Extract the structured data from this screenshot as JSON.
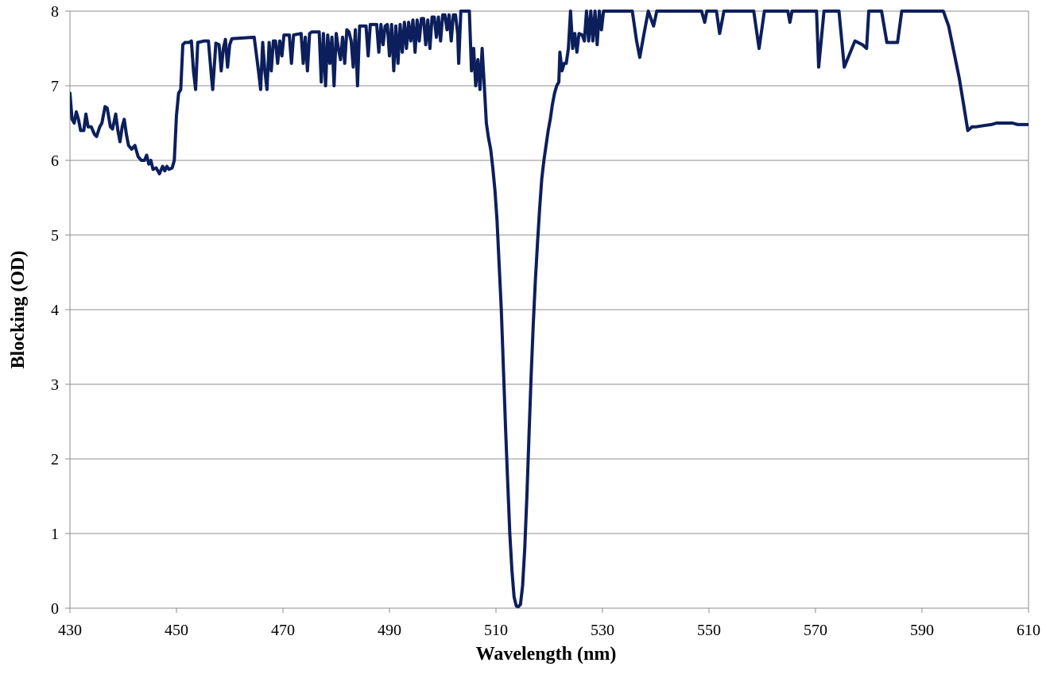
{
  "chart_data": {
    "type": "line",
    "title": "",
    "xlabel": "Wavelength (nm)",
    "ylabel": "Blocking (OD)",
    "xlim": [
      430,
      610
    ],
    "ylim": [
      0,
      8
    ],
    "x_ticks": [
      "430",
      "450",
      "470",
      "490",
      "510",
      "530",
      "550",
      "570",
      "590",
      "610"
    ],
    "y_ticks": [
      "0",
      "1",
      "2",
      "3",
      "4",
      "5",
      "6",
      "7",
      "8"
    ],
    "grid": "horizontal",
    "legend": "none",
    "line_color": "#0c1f5c",
    "series": [
      {
        "points": [
          [
            430,
            6.9
          ],
          [
            430.4,
            6.55
          ],
          [
            430.8,
            6.5
          ],
          [
            431.2,
            6.65
          ],
          [
            431.6,
            6.55
          ],
          [
            432,
            6.4
          ],
          [
            432.6,
            6.4
          ],
          [
            433,
            6.62
          ],
          [
            433.4,
            6.45
          ],
          [
            434,
            6.45
          ],
          [
            434.6,
            6.35
          ],
          [
            435,
            6.32
          ],
          [
            435.6,
            6.45
          ],
          [
            436,
            6.5
          ],
          [
            436.6,
            6.72
          ],
          [
            437,
            6.7
          ],
          [
            437.6,
            6.45
          ],
          [
            438,
            6.42
          ],
          [
            438.6,
            6.62
          ],
          [
            439,
            6.4
          ],
          [
            439.4,
            6.25
          ],
          [
            439.8,
            6.45
          ],
          [
            440.2,
            6.55
          ],
          [
            440.6,
            6.35
          ],
          [
            441,
            6.2
          ],
          [
            441.6,
            6.15
          ],
          [
            442.2,
            6.2
          ],
          [
            442.8,
            6.05
          ],
          [
            443.4,
            6.0
          ],
          [
            444,
            6.0
          ],
          [
            444.4,
            6.07
          ],
          [
            444.8,
            5.95
          ],
          [
            445.2,
            6.0
          ],
          [
            445.6,
            5.88
          ],
          [
            446.2,
            5.9
          ],
          [
            446.8,
            5.82
          ],
          [
            447.4,
            5.92
          ],
          [
            447.8,
            5.86
          ],
          [
            448.2,
            5.92
          ],
          [
            448.6,
            5.88
          ],
          [
            449.2,
            5.9
          ],
          [
            449.6,
            6.0
          ],
          [
            450,
            6.6
          ],
          [
            450.4,
            6.9
          ],
          [
            450.8,
            6.95
          ],
          [
            451.2,
            7.55
          ],
          [
            451.6,
            7.58
          ],
          [
            452.4,
            7.58
          ],
          [
            452.8,
            7.6
          ],
          [
            453.2,
            7.2
          ],
          [
            453.6,
            6.95
          ],
          [
            454,
            7.58
          ],
          [
            455.2,
            7.6
          ],
          [
            456,
            7.6
          ],
          [
            456.6,
            7.1
          ],
          [
            456.8,
            6.95
          ],
          [
            457.4,
            7.57
          ],
          [
            458,
            7.55
          ],
          [
            458.4,
            7.2
          ],
          [
            458.8,
            7.5
          ],
          [
            459.2,
            7.62
          ],
          [
            459.6,
            7.25
          ],
          [
            460,
            7.55
          ],
          [
            460.4,
            7.63
          ],
          [
            464.6,
            7.65
          ],
          [
            465.4,
            7.2
          ],
          [
            465.8,
            6.95
          ],
          [
            466.2,
            7.58
          ],
          [
            466.6,
            7.2
          ],
          [
            467,
            6.95
          ],
          [
            467.4,
            7.58
          ],
          [
            467.8,
            7.2
          ],
          [
            468.2,
            7.6
          ],
          [
            468.6,
            7.6
          ],
          [
            469,
            7.3
          ],
          [
            469.4,
            7.6
          ],
          [
            469.8,
            7.4
          ],
          [
            470.2,
            7.68
          ],
          [
            471.2,
            7.68
          ],
          [
            471.6,
            7.3
          ],
          [
            472,
            7.68
          ],
          [
            473.4,
            7.7
          ],
          [
            473.8,
            7.3
          ],
          [
            474.2,
            7.65
          ],
          [
            474.6,
            7.2
          ],
          [
            475,
            7.7
          ],
          [
            475.4,
            7.72
          ],
          [
            476.8,
            7.72
          ],
          [
            477.2,
            7.05
          ],
          [
            477.6,
            7.7
          ],
          [
            478,
            7.0
          ],
          [
            478.4,
            7.68
          ],
          [
            478.8,
            7.3
          ],
          [
            479.2,
            7.65
          ],
          [
            479.6,
            7.0
          ],
          [
            480,
            7.7
          ],
          [
            480.4,
            7.5
          ],
          [
            480.8,
            7.35
          ],
          [
            481.2,
            7.65
          ],
          [
            481.6,
            7.3
          ],
          [
            482,
            7.75
          ],
          [
            482.4,
            7.72
          ],
          [
            482.8,
            7.6
          ],
          [
            483.2,
            7.25
          ],
          [
            483.6,
            7.75
          ],
          [
            484,
            7.0
          ],
          [
            484.4,
            7.8
          ],
          [
            485.6,
            7.8
          ],
          [
            486,
            7.4
          ],
          [
            486.4,
            7.82
          ],
          [
            487.6,
            7.82
          ],
          [
            488,
            7.45
          ],
          [
            488.4,
            7.82
          ],
          [
            488.8,
            7.55
          ],
          [
            489.2,
            7.8
          ],
          [
            489.6,
            7.82
          ],
          [
            490,
            7.4
          ],
          [
            490.4,
            7.82
          ],
          [
            490.8,
            7.2
          ],
          [
            491.2,
            7.8
          ],
          [
            491.6,
            7.3
          ],
          [
            492,
            7.82
          ],
          [
            492.4,
            7.45
          ],
          [
            492.8,
            7.85
          ],
          [
            493.2,
            7.5
          ],
          [
            493.6,
            7.85
          ],
          [
            494,
            7.6
          ],
          [
            494.4,
            7.88
          ],
          [
            494.8,
            7.45
          ],
          [
            495.2,
            7.88
          ],
          [
            495.6,
            7.6
          ],
          [
            496,
            7.9
          ],
          [
            496.4,
            7.9
          ],
          [
            496.8,
            7.55
          ],
          [
            497.2,
            7.88
          ],
          [
            497.6,
            7.5
          ],
          [
            498,
            7.92
          ],
          [
            498.4,
            7.92
          ],
          [
            498.8,
            7.65
          ],
          [
            499.2,
            7.92
          ],
          [
            499.6,
            7.6
          ],
          [
            500,
            7.95
          ],
          [
            500.4,
            7.95
          ],
          [
            500.8,
            7.75
          ],
          [
            501.2,
            7.95
          ],
          [
            501.6,
            7.6
          ],
          [
            502,
            7.95
          ],
          [
            502.4,
            7.95
          ],
          [
            502.8,
            7.7
          ],
          [
            503,
            7.3
          ],
          [
            503.4,
            8.0
          ],
          [
            505,
            8.0
          ],
          [
            505.4,
            7.2
          ],
          [
            505.8,
            7.5
          ],
          [
            506.2,
            7.0
          ],
          [
            506.6,
            7.35
          ],
          [
            507,
            6.95
          ],
          [
            507.4,
            7.5
          ],
          [
            507.8,
            7.0
          ],
          [
            508.2,
            6.5
          ],
          [
            508.6,
            6.3
          ],
          [
            509,
            6.15
          ],
          [
            509.4,
            5.9
          ],
          [
            509.8,
            5.6
          ],
          [
            510.2,
            5.2
          ],
          [
            510.6,
            4.6
          ],
          [
            511,
            4.0
          ],
          [
            511.4,
            3.2
          ],
          [
            511.8,
            2.4
          ],
          [
            512.2,
            1.7
          ],
          [
            512.6,
            1.0
          ],
          [
            513,
            0.5
          ],
          [
            513.4,
            0.15
          ],
          [
            513.8,
            0.03
          ],
          [
            514.2,
            0.02
          ],
          [
            514.6,
            0.05
          ],
          [
            515,
            0.3
          ],
          [
            515.4,
            0.8
          ],
          [
            515.8,
            1.5
          ],
          [
            516.2,
            2.3
          ],
          [
            516.6,
            3.1
          ],
          [
            517,
            3.8
          ],
          [
            517.4,
            4.4
          ],
          [
            517.8,
            4.9
          ],
          [
            518.2,
            5.35
          ],
          [
            518.6,
            5.75
          ],
          [
            519,
            6.0
          ],
          [
            519.4,
            6.2
          ],
          [
            519.8,
            6.4
          ],
          [
            520.2,
            6.55
          ],
          [
            520.6,
            6.75
          ],
          [
            521,
            6.9
          ],
          [
            521.4,
            7.0
          ],
          [
            521.8,
            7.05
          ],
          [
            522,
            7.45
          ],
          [
            522.4,
            7.2
          ],
          [
            522.8,
            7.3
          ],
          [
            523.2,
            7.3
          ],
          [
            523.6,
            7.5
          ],
          [
            524,
            8.0
          ],
          [
            524.4,
            7.5
          ],
          [
            524.8,
            7.7
          ],
          [
            525.2,
            7.45
          ],
          [
            525.6,
            7.7
          ],
          [
            526.2,
            7.68
          ],
          [
            526.6,
            7.6
          ],
          [
            527,
            8.0
          ],
          [
            527.4,
            7.6
          ],
          [
            527.8,
            8.0
          ],
          [
            528.2,
            7.6
          ],
          [
            528.6,
            8.0
          ],
          [
            529,
            7.55
          ],
          [
            529.4,
            8.0
          ],
          [
            529.8,
            7.75
          ],
          [
            530.2,
            8.0
          ],
          [
            535.6,
            8.0
          ],
          [
            536.4,
            7.6
          ],
          [
            537,
            7.38
          ],
          [
            537.8,
            7.7
          ],
          [
            538.6,
            8.0
          ],
          [
            539.6,
            7.8
          ],
          [
            540.2,
            8.0
          ],
          [
            548.6,
            8.0
          ],
          [
            549.2,
            7.85
          ],
          [
            549.6,
            8.0
          ],
          [
            551.4,
            8.0
          ],
          [
            552,
            7.7
          ],
          [
            552.8,
            8.0
          ],
          [
            558.4,
            8.0
          ],
          [
            559.4,
            7.5
          ],
          [
            560.4,
            8.0
          ],
          [
            564.8,
            8.0
          ],
          [
            565.2,
            7.85
          ],
          [
            565.6,
            8.0
          ],
          [
            570.2,
            8.0
          ],
          [
            570.6,
            7.25
          ],
          [
            571.6,
            8.0
          ],
          [
            574.4,
            8.0
          ],
          [
            575.4,
            7.25
          ],
          [
            577.4,
            7.6
          ],
          [
            578.8,
            7.55
          ],
          [
            579.6,
            7.5
          ],
          [
            580,
            8.0
          ],
          [
            582.4,
            8.0
          ],
          [
            583.4,
            7.58
          ],
          [
            585.4,
            7.58
          ],
          [
            586.2,
            8.0
          ],
          [
            594,
            8.0
          ],
          [
            595,
            7.8
          ],
          [
            596,
            7.45
          ],
          [
            597,
            7.1
          ],
          [
            597.8,
            6.75
          ],
          [
            598.6,
            6.4
          ],
          [
            599.4,
            6.45
          ],
          [
            600.2,
            6.45
          ],
          [
            601,
            6.46
          ],
          [
            602,
            6.47
          ],
          [
            603,
            6.48
          ],
          [
            604,
            6.5
          ],
          [
            605,
            6.5
          ],
          [
            606,
            6.5
          ],
          [
            607,
            6.5
          ],
          [
            608,
            6.48
          ],
          [
            609,
            6.48
          ],
          [
            610,
            6.48
          ]
        ]
      }
    ]
  }
}
